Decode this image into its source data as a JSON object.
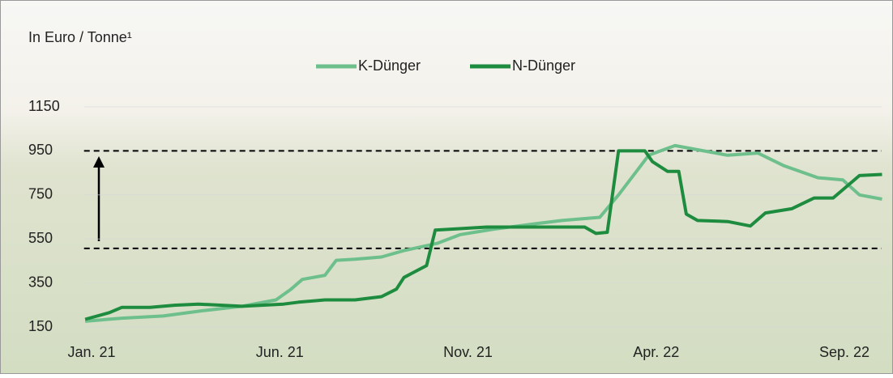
{
  "chart_data": {
    "type": "line",
    "title": "In Euro / Tonne¹",
    "xlim": [
      -0.2,
      21
    ],
    "xticks": [
      {
        "value": 0,
        "label": "Jan. 21"
      },
      {
        "value": 5,
        "label": "Jun. 21"
      },
      {
        "value": 10,
        "label": "Nov. 21"
      },
      {
        "value": 15,
        "label": "Apr. 22"
      },
      {
        "value": 20,
        "label": "Sep. 22"
      }
    ],
    "ylim": [
      150,
      1150
    ],
    "yticks": [
      150,
      350,
      550,
      750,
      950,
      1150
    ],
    "grid": true,
    "reference_lines": [
      950,
      507
    ],
    "series": [
      {
        "name": "K-Dünger",
        "color": "#6dbf8b",
        "x": [
          -0.17,
          0.8,
          1.9,
          2.95,
          4.0,
          4.9,
          5.3,
          5.6,
          6.2,
          6.5,
          7.0,
          7.7,
          8.3,
          9.2,
          9.8,
          10.7,
          11.8,
          12.5,
          13.5,
          14.0,
          14.5,
          14.8,
          15.5,
          16.1,
          16.9,
          17.7,
          18.4,
          19.3,
          19.96,
          20.4,
          21.0
        ],
        "values": [
          176,
          190,
          200,
          224,
          244,
          273,
          322,
          366,
          385,
          453,
          458,
          468,
          497,
          531,
          570,
          595,
          619,
          634,
          648,
          750,
          862,
          930,
          974,
          955,
          930,
          940,
          882,
          828,
          818,
          750,
          731
        ]
      },
      {
        "name": "N-Dünger",
        "color": "#1e8c3f",
        "x": [
          -0.17,
          0.47,
          0.8,
          1.55,
          2.2,
          2.84,
          4.0,
          5.1,
          5.5,
          6.2,
          7.0,
          7.7,
          8.1,
          8.3,
          8.9,
          9.13,
          9.6,
          10.5,
          13.1,
          13.4,
          13.7,
          14.0,
          14.7,
          14.9,
          15.3,
          15.6,
          15.8,
          16.1,
          16.9,
          17.5,
          17.9,
          18.6,
          19.2,
          19.7,
          20.4,
          21.0
        ],
        "values": [
          185,
          215,
          239,
          239,
          249,
          254,
          244,
          254,
          263,
          273,
          273,
          288,
          322,
          375,
          429,
          590,
          595,
          604,
          604,
          575,
          580,
          950,
          950,
          901,
          857,
          857,
          663,
          634,
          629,
          609,
          668,
          687,
          736,
          736,
          838,
          843
        ]
      }
    ]
  }
}
